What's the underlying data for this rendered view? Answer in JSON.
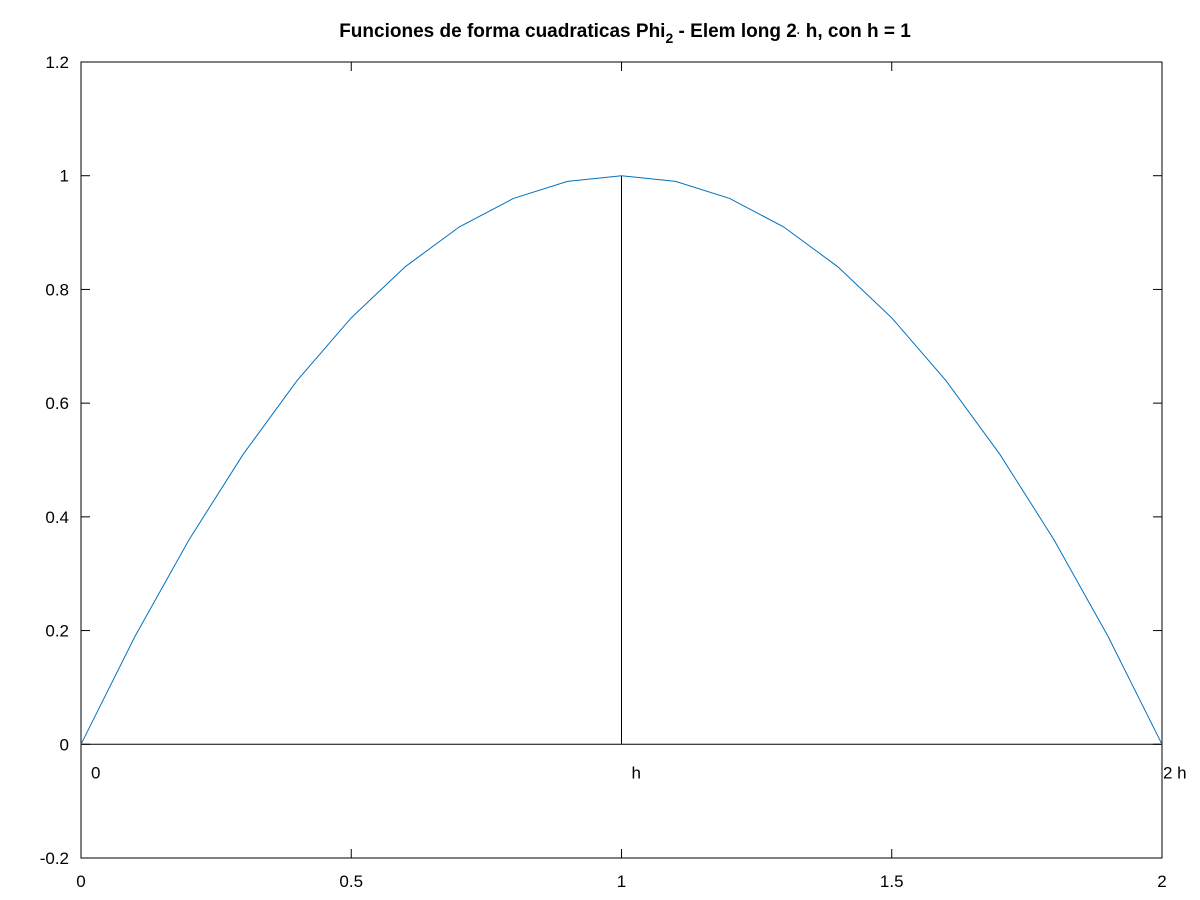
{
  "chart_data": {
    "type": "line",
    "title": {
      "main": "Funciones de forma cuadraticas Phi",
      "subscript": "2",
      "rest": " - Elem long 2",
      "dot": "·",
      "tail": " h, con h = 1"
    },
    "xlim": [
      0,
      2
    ],
    "ylim": [
      -0.2,
      1.2
    ],
    "x_ticks": [
      0,
      0.5,
      1,
      1.5,
      2
    ],
    "x_tick_labels": [
      "0",
      "0.5",
      "1",
      "1.5",
      "2"
    ],
    "y_ticks": [
      -0.2,
      0,
      0.2,
      0.4,
      0.6,
      0.8,
      1,
      1.2
    ],
    "y_tick_labels": [
      "-0.2",
      "0",
      "0.2",
      "0.4",
      "0.6",
      "0.8",
      "1",
      "1.2"
    ],
    "grid": false,
    "series": [
      {
        "color": "#0072bd",
        "x": [
          0,
          0.1,
          0.2,
          0.3,
          0.4,
          0.5,
          0.6,
          0.7,
          0.8,
          0.9,
          1.0,
          1.1,
          1.2,
          1.3,
          1.4,
          1.5,
          1.6,
          1.7,
          1.8,
          1.9,
          2.0
        ],
        "y": [
          0,
          0.19,
          0.36,
          0.51,
          0.64,
          0.75,
          0.84,
          0.91,
          0.96,
          0.99,
          1.0,
          0.99,
          0.96,
          0.91,
          0.84,
          0.75,
          0.64,
          0.51,
          0.36,
          0.19,
          0
        ]
      }
    ],
    "reference_lines": [
      {
        "kind": "horizontal",
        "y": 0,
        "x_from": 0,
        "x_to": 2,
        "color": "#000000"
      },
      {
        "kind": "vertical",
        "x": 1,
        "y_from": 0,
        "y_to": 1,
        "color": "#000000"
      }
    ],
    "annotations": [
      {
        "text": "0",
        "x": 0,
        "y": -0.05
      },
      {
        "text": "h",
        "x": 1,
        "y": -0.05
      },
      {
        "text": "2 h",
        "x": 2,
        "y": -0.05
      }
    ]
  }
}
